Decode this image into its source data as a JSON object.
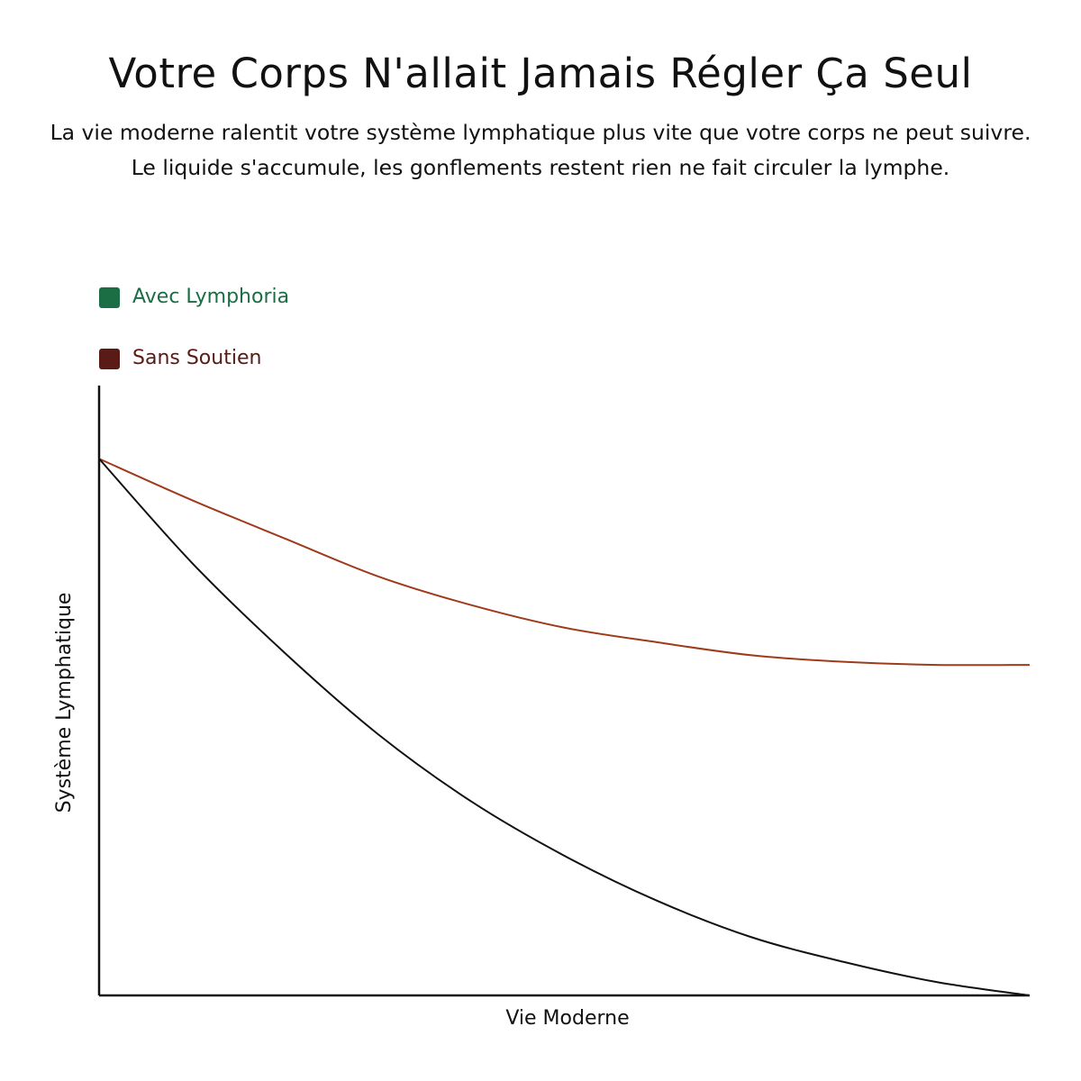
{
  "chart_data": {
    "type": "line",
    "title": "Votre Corps N'allait Jamais Régler Ça Seul",
    "subtitle": "La vie moderne ralentit votre système lymphatique plus vite que votre corps ne peut suivre. Le liquide s'accumule, les gonflements restent rien ne fait circuler la lymphe.",
    "x_label": "Vie Moderne",
    "y_label": "Système Lymphatique",
    "x": [
      0,
      1,
      2,
      3,
      4,
      5,
      6,
      7,
      8,
      9,
      10
    ],
    "xlim": [
      0,
      10
    ],
    "ylim": [
      0,
      100
    ],
    "series": [
      {
        "name": "Avec Lymphoria",
        "color": "#1b6e44",
        "line_color": "#9e3b1b",
        "values": [
          88,
          81.2,
          74.9,
          68.7,
          64.0,
          60.3,
          57.9,
          55.8,
          54.7,
          54.2,
          54.2
        ]
      },
      {
        "name": "Sans Soutien",
        "color": "#5a1a16",
        "line_color": "#111111",
        "values": [
          88,
          70.9,
          56.1,
          42.8,
          31.8,
          22.9,
          15.5,
          9.6,
          5.5,
          2.2,
          0
        ]
      }
    ]
  }
}
